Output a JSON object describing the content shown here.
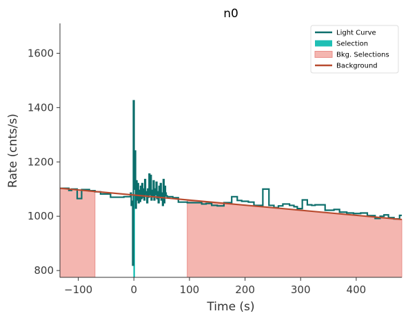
{
  "chart_data": {
    "type": "line",
    "title": "n0",
    "xlabel": "Time (s)",
    "ylabel": "Rate (cnts/s)",
    "xlim": [
      -133,
      482
    ],
    "ylim": [
      775,
      1710
    ],
    "xticks": [
      -100,
      0,
      100,
      200,
      300,
      400
    ],
    "yticks": [
      800,
      1000,
      1200,
      1400,
      1600
    ],
    "legend": {
      "position": "top-right",
      "entries": [
        {
          "label": "Light Curve",
          "kind": "line",
          "color": "#0c6e6b"
        },
        {
          "label": "Selection",
          "kind": "patch",
          "color": "#1fbfb4"
        },
        {
          "label": "Bkg. Selections",
          "kind": "patch",
          "color": "#f4b6b0"
        },
        {
          "label": "Background",
          "kind": "line",
          "color": "#b84a2e"
        }
      ]
    },
    "colors": {
      "light_curve": "#0c6e6b",
      "selection": "#1fbfb4",
      "bkg_selection": "#f4b6b0",
      "bkg_selection_edge": "#e98f8a",
      "background": "#b84a2e"
    },
    "background_fit": {
      "x": [
        -133,
        482
      ],
      "y": [
        1103,
        988
      ]
    },
    "bkg_selections": [
      [
        -133,
        -70
      ],
      [
        96,
        482
      ]
    ],
    "selection": [
      -1,
      2
    ],
    "light_curve": {
      "coarse_steps": [
        [
          -133,
          1103
        ],
        [
          -117,
          1095
        ],
        [
          -112,
          1100
        ],
        [
          -102,
          1065
        ],
        [
          -94,
          1098
        ],
        [
          -80,
          1094
        ],
        [
          -70,
          1090
        ],
        [
          -60,
          1082
        ],
        [
          -42,
          1070
        ],
        [
          -18,
          1072
        ],
        [
          -6,
          1075
        ],
        [
          60,
          1072
        ],
        [
          70,
          1068
        ],
        [
          80,
          1052
        ],
        [
          96,
          1050
        ],
        [
          122,
          1045
        ],
        [
          130,
          1047
        ],
        [
          140,
          1040
        ],
        [
          150,
          1038
        ],
        [
          162,
          1050
        ],
        [
          176,
          1072
        ],
        [
          186,
          1058
        ],
        [
          194,
          1055
        ],
        [
          206,
          1052
        ],
        [
          216,
          1040
        ],
        [
          232,
          1100
        ],
        [
          243,
          1040
        ],
        [
          252,
          1032
        ],
        [
          260,
          1038
        ],
        [
          268,
          1045
        ],
        [
          280,
          1040
        ],
        [
          288,
          1035
        ],
        [
          294,
          1028
        ],
        [
          303,
          1060
        ],
        [
          312,
          1042
        ],
        [
          320,
          1040
        ],
        [
          326,
          1042
        ],
        [
          344,
          1022
        ],
        [
          360,
          1025
        ],
        [
          370,
          1015
        ],
        [
          383,
          1012
        ],
        [
          395,
          1010
        ],
        [
          408,
          1012
        ],
        [
          420,
          1002
        ],
        [
          434,
          992
        ],
        [
          443,
          1000
        ],
        [
          450,
          1005
        ],
        [
          458,
          995
        ],
        [
          468,
          990
        ],
        [
          478,
          1003
        ]
      ],
      "coarse_end": 482,
      "fine_start": -6,
      "fine_values": [
        1085,
        1040,
        1055,
        820,
        1425,
        1100,
        1240,
        1030,
        1130,
        1060,
        1120,
        1050,
        1095,
        1055,
        1110,
        1065,
        1120,
        1070,
        1100,
        1060,
        1135,
        1080,
        1090,
        1050,
        1100,
        1070,
        1155,
        1080,
        1150,
        1060,
        1095,
        1075,
        1130,
        1060,
        1100,
        1080,
        1125,
        1065,
        1090,
        1050,
        1110,
        1070,
        1120,
        1060,
        1085,
        1040,
        1135,
        1050,
        1110,
        1085
      ],
      "fine_step": 1.28
    }
  }
}
